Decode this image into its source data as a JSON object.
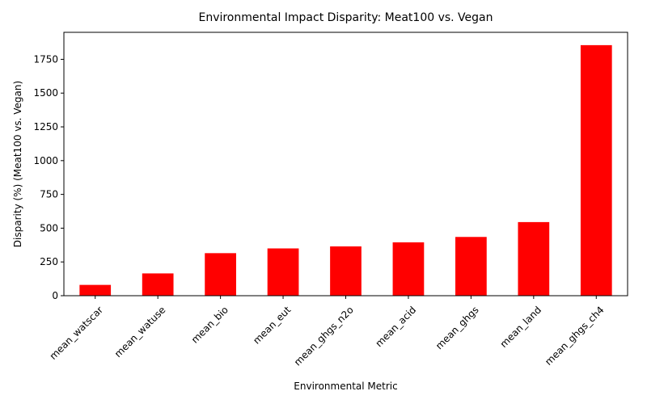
{
  "chart_data": {
    "type": "bar",
    "title": "Environmental Impact Disparity: Meat100 vs. Vegan",
    "xlabel": "Environmental Metric",
    "ylabel": "Disparity (%) (Meat100 vs. Vegan)",
    "categories": [
      "mean_watscar",
      "mean_watuse",
      "mean_bio",
      "mean_eut",
      "mean_ghgs_n2o",
      "mean_acid",
      "mean_ghgs",
      "mean_land",
      "mean_ghgs_ch4"
    ],
    "values": [
      80,
      165,
      315,
      350,
      365,
      395,
      435,
      545,
      1855
    ],
    "ylim": [
      0,
      1950
    ],
    "yticks": [
      0,
      250,
      500,
      750,
      1000,
      1250,
      1500,
      1750
    ],
    "grid": false,
    "bar_color": "#ff0000"
  }
}
